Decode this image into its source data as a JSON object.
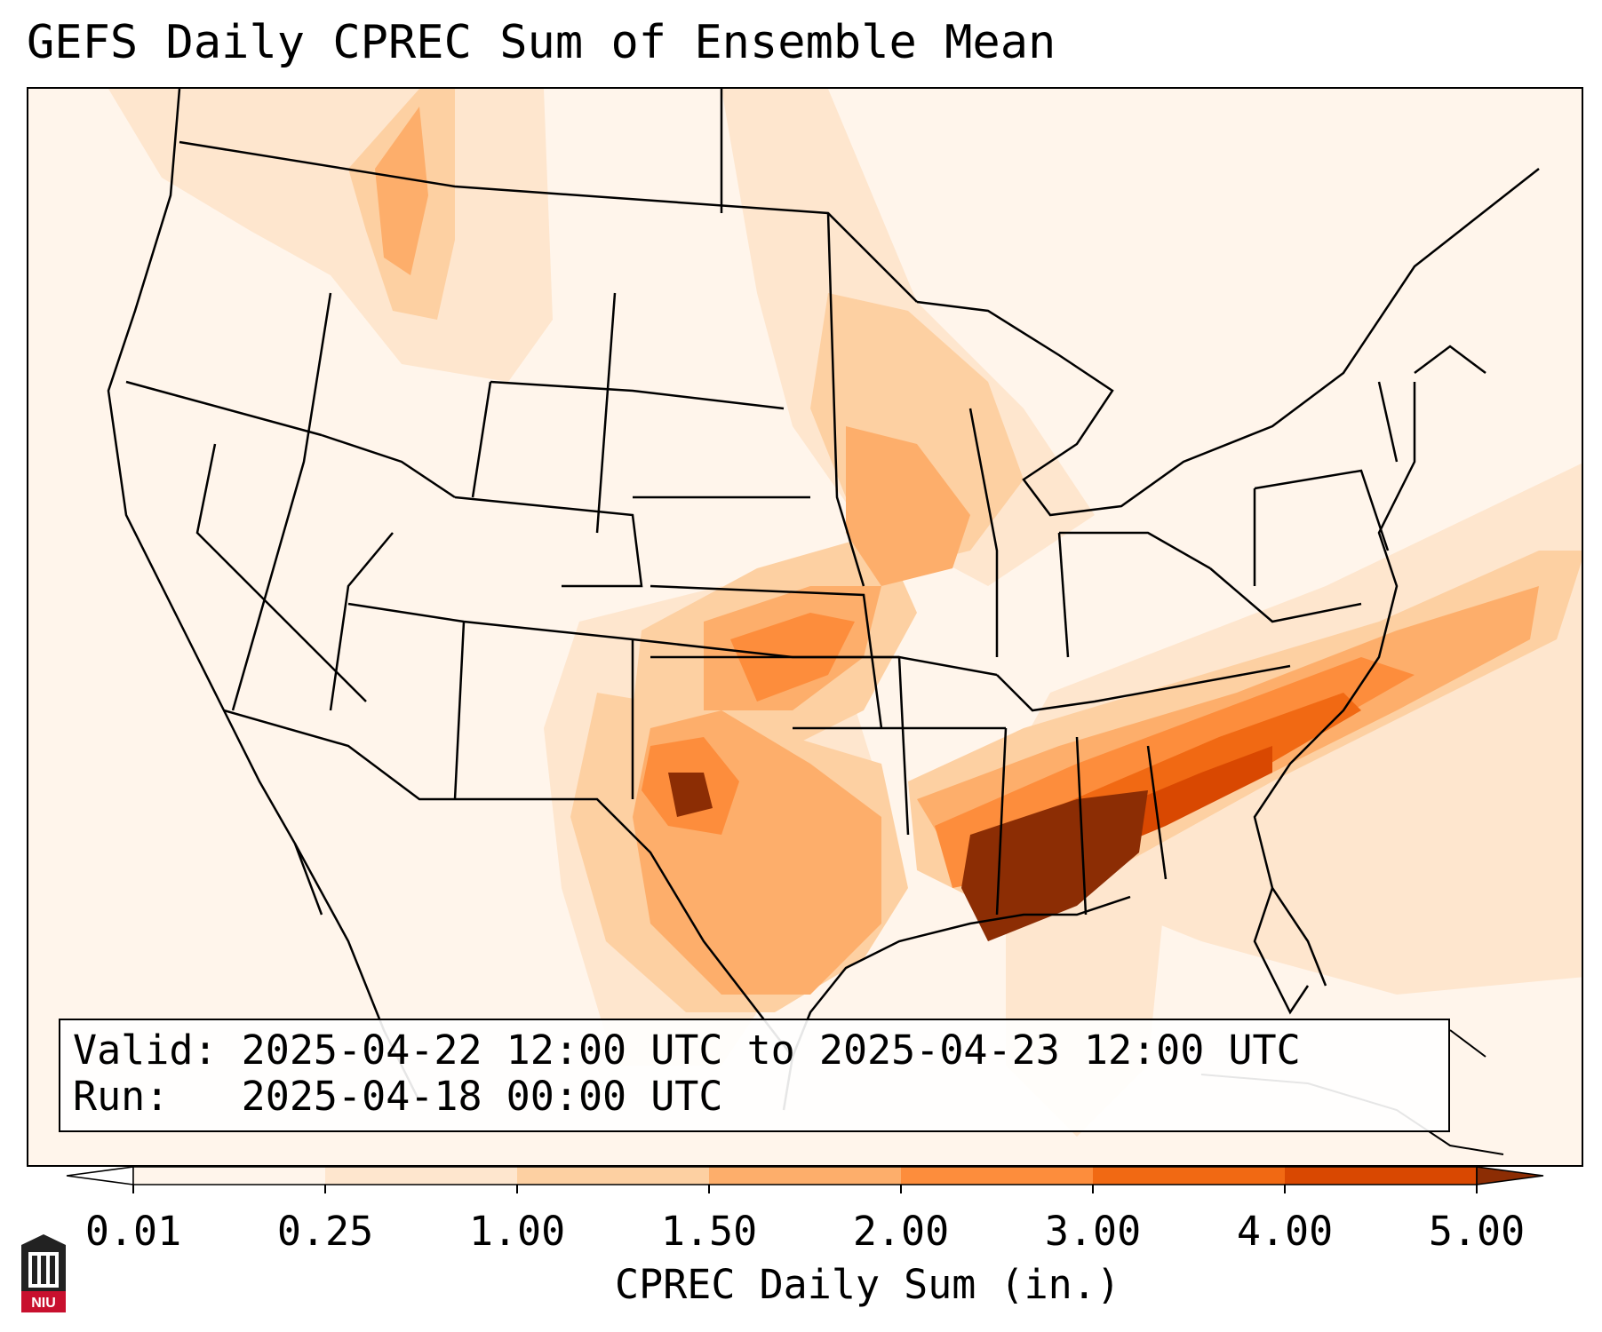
{
  "title": "GEFS Daily CPREC Sum of Ensemble Mean",
  "info": {
    "valid_line": "Valid: 2025-04-22 12:00 UTC to 2025-04-23 12:00 UTC",
    "run_line": "Run:   2025-04-18 00:00 UTC"
  },
  "colorbar": {
    "label": "CPREC Daily Sum (in.)",
    "ticks": [
      "0.01",
      "0.25",
      "1.00",
      "1.50",
      "2.00",
      "3.00",
      "4.00",
      "5.00"
    ],
    "colors": [
      "#fff5eb",
      "#fee6ce",
      "#fdd0a2",
      "#fdae6b",
      "#fd8d3c",
      "#f16913",
      "#d94801",
      "#8c2d04"
    ],
    "extend_low_color": "#ffffff",
    "extend_high_color": "#8c2d04"
  },
  "logo": {
    "text": "NIU",
    "icon": "niu-tower-logo"
  },
  "map": {
    "projection": "Lambert conformal conic",
    "region": "Continental United States",
    "variable": "convective precipitation daily sum",
    "features": [
      "state-borders",
      "country-borders",
      "coastlines",
      "great-lakes"
    ]
  }
}
